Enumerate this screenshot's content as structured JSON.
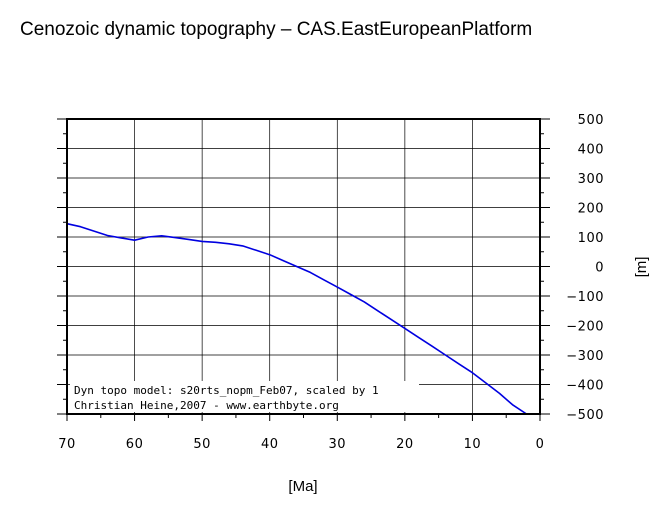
{
  "chart_data": {
    "type": "line",
    "title": "Cenozoic dynamic topography – CAS.EastEuropeanPlatform",
    "xlabel": "[Ma]",
    "ylabel": "[m]",
    "xlim": [
      70,
      0
    ],
    "ylim": [
      -500,
      500
    ],
    "x_reversed": true,
    "y_axis_side": "right",
    "grid": true,
    "x_ticks": [
      "70",
      "60",
      "50",
      "40",
      "30",
      "20",
      "10",
      "0"
    ],
    "y_ticks": [
      "500",
      "400",
      "300",
      "200",
      "100",
      "0",
      "−100",
      "−200",
      "−300",
      "−400",
      "−500"
    ],
    "line_color": "#0000e0",
    "annotation": [
      "Dyn topo model: s20rts_nopm_Feb07, scaled by 1",
      "Christian Heine,2007 - www.earthbyte.org"
    ],
    "series": [
      {
        "x": [
          70,
          68,
          66,
          64,
          62,
          60,
          58,
          56,
          54,
          52,
          50,
          48,
          46,
          44,
          42,
          40,
          38,
          36,
          34,
          32,
          30,
          28,
          26,
          24,
          22,
          20,
          18,
          16,
          14,
          12,
          10,
          8,
          6,
          4,
          2
        ],
        "y": [
          145,
          135,
          120,
          105,
          97,
          89,
          100,
          104,
          98,
          92,
          85,
          82,
          77,
          70,
          55,
          40,
          20,
          0,
          -20,
          -45,
          -70,
          -95,
          -120,
          -150,
          -180,
          -210,
          -240,
          -270,
          -300,
          -330,
          -360,
          -395,
          -430,
          -470,
          -500
        ]
      }
    ]
  }
}
